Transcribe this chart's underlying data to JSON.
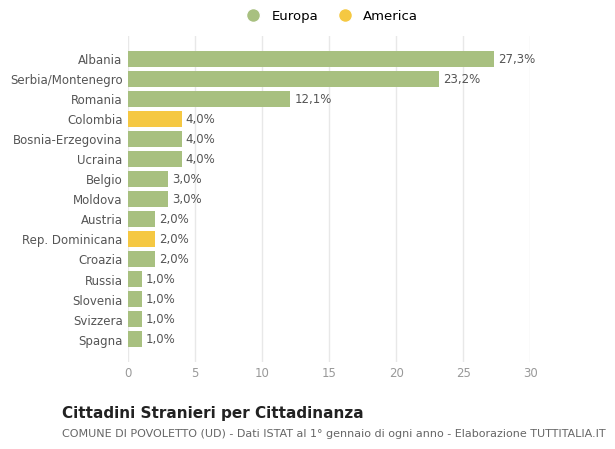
{
  "categories": [
    "Albania",
    "Serbia/Montenegro",
    "Romania",
    "Colombia",
    "Bosnia-Erzegovina",
    "Ucraina",
    "Belgio",
    "Moldova",
    "Austria",
    "Rep. Dominicana",
    "Croazia",
    "Russia",
    "Slovenia",
    "Svizzera",
    "Spagna"
  ],
  "values": [
    27.3,
    23.2,
    12.1,
    4.0,
    4.0,
    4.0,
    3.0,
    3.0,
    2.0,
    2.0,
    2.0,
    1.0,
    1.0,
    1.0,
    1.0
  ],
  "labels": [
    "27,3%",
    "23,2%",
    "12,1%",
    "4,0%",
    "4,0%",
    "4,0%",
    "3,0%",
    "3,0%",
    "2,0%",
    "2,0%",
    "2,0%",
    "1,0%",
    "1,0%",
    "1,0%",
    "1,0%"
  ],
  "types": [
    "Europa",
    "Europa",
    "Europa",
    "America",
    "Europa",
    "Europa",
    "Europa",
    "Europa",
    "Europa",
    "America",
    "Europa",
    "Europa",
    "Europa",
    "Europa",
    "Europa"
  ],
  "color_europa": "#a8c080",
  "color_america": "#f5c842",
  "bg_color": "#ffffff",
  "plot_bg_color": "#ffffff",
  "grid_color": "#e8e8e8",
  "xlim": [
    0,
    30
  ],
  "xticks": [
    0,
    5,
    10,
    15,
    20,
    25,
    30
  ],
  "title": "Cittadini Stranieri per Cittadinanza",
  "subtitle": "COMUNE DI POVOLETTO (UD) - Dati ISTAT al 1° gennaio di ogni anno - Elaborazione TUTTITALIA.IT",
  "legend_europa": "Europa",
  "legend_america": "America",
  "bar_height": 0.82,
  "label_fontsize": 8.5,
  "tick_fontsize": 8.5,
  "ytick_fontsize": 8.5,
  "title_fontsize": 11,
  "subtitle_fontsize": 8,
  "label_color": "#555555",
  "ytick_color": "#555555",
  "xtick_color": "#999999"
}
